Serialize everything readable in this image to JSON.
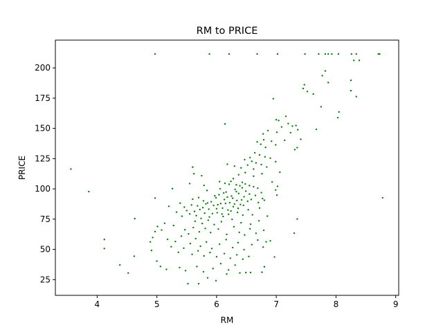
{
  "chart_data": {
    "type": "scatter",
    "title": "RM to PRICE",
    "xlabel": "RM",
    "ylabel": "PRICE",
    "xlim": [
      3.3,
      9.05
    ],
    "ylim": [
      12,
      223
    ],
    "xticks": [
      4,
      5,
      6,
      7,
      8,
      9
    ],
    "yticks": [
      25,
      50,
      75,
      100,
      125,
      150,
      175,
      200
    ],
    "grid": false,
    "marker_color": "#008000",
    "series": [
      {
        "points": [
          [
            4.97,
            211.5
          ],
          [
            5.88,
            211.5
          ],
          [
            6.21,
            211.5
          ],
          [
            6.68,
            211.5
          ],
          [
            7.02,
            211.5
          ],
          [
            7.48,
            211.5
          ],
          [
            7.82,
            211.5
          ],
          [
            7.87,
            211.5
          ],
          [
            7.93,
            211.5
          ],
          [
            8.04,
            211.5
          ],
          [
            8.26,
            211.5
          ],
          [
            8.34,
            211.5
          ],
          [
            8.71,
            211.5
          ],
          [
            8.73,
            211.5
          ],
          [
            7.71,
            211.5
          ],
          [
            8.3,
            206.2
          ],
          [
            8.39,
            206.2
          ],
          [
            7.77,
            193.6
          ],
          [
            7.82,
            197.5
          ],
          [
            7.87,
            187.9
          ],
          [
            8.25,
            189.7
          ],
          [
            7.47,
            186.1
          ],
          [
            7.45,
            183.0
          ],
          [
            7.52,
            180.5
          ],
          [
            7.62,
            178.4
          ],
          [
            8.25,
            181.2
          ],
          [
            8.34,
            176.3
          ],
          [
            6.95,
            174.6
          ],
          [
            7.75,
            167.9
          ],
          [
            8.05,
            163.6
          ],
          [
            8.03,
            158.9
          ],
          [
            6.14,
            153.7
          ],
          [
            7.0,
            157.2
          ],
          [
            7.04,
            156.5
          ],
          [
            7.16,
            160.0
          ],
          [
            7.2,
            154.0
          ],
          [
            7.27,
            151.9
          ],
          [
            7.33,
            152.4
          ],
          [
            7.36,
            148.9
          ],
          [
            7.67,
            149.2
          ],
          [
            7.09,
            151.2
          ],
          [
            6.86,
            148.2
          ],
          [
            6.78,
            145.5
          ],
          [
            7.01,
            146.8
          ],
          [
            7.24,
            146.5
          ],
          [
            6.79,
            140.6
          ],
          [
            6.68,
            138.9
          ],
          [
            6.92,
            139.4
          ],
          [
            7.14,
            140.2
          ],
          [
            7.41,
            141.0
          ],
          [
            6.99,
            136.4
          ],
          [
            6.74,
            136.9
          ],
          [
            6.82,
            134.3
          ],
          [
            7.31,
            132.5
          ],
          [
            7.35,
            134.1
          ],
          [
            6.64,
            129.8
          ],
          [
            6.72,
            128.1
          ],
          [
            6.81,
            126.5
          ],
          [
            6.9,
            125.4
          ],
          [
            6.56,
            125.9
          ],
          [
            6.47,
            124.2
          ],
          [
            6.59,
            122.8
          ],
          [
            6.66,
            121.5
          ],
          [
            6.75,
            120.1
          ],
          [
            6.99,
            122.5
          ],
          [
            6.18,
            120.4
          ],
          [
            6.3,
            118.8
          ],
          [
            6.41,
            117.4
          ],
          [
            6.52,
            119.7
          ],
          [
            6.62,
            116.4
          ],
          [
            6.84,
            118.1
          ],
          [
            5.6,
            118.0
          ],
          [
            5.62,
            112.5
          ],
          [
            5.75,
            110.9
          ],
          [
            6.37,
            111.7
          ],
          [
            6.48,
            113.5
          ],
          [
            6.62,
            110.5
          ],
          [
            6.76,
            112.5
          ],
          [
            7.06,
            113.8
          ],
          [
            6.28,
            108.5
          ],
          [
            6.93,
            105.7
          ],
          [
            5.26,
            100.2
          ],
          [
            5.55,
            104.4
          ],
          [
            5.79,
            102.9
          ],
          [
            6.05,
            106.0
          ],
          [
            6.14,
            104.6
          ],
          [
            6.24,
            106.2
          ],
          [
            6.33,
            103.4
          ],
          [
            6.43,
            105.4
          ],
          [
            6.55,
            102.7
          ],
          [
            6.69,
            100.6
          ],
          [
            7.02,
            102.1
          ],
          [
            6.99,
            99.1
          ],
          [
            3.56,
            116.4
          ],
          [
            3.86,
            97.8
          ],
          [
            4.97,
            92.4
          ],
          [
            8.78,
            92.6
          ],
          [
            7.01,
            94.8
          ],
          [
            6.77,
            92.0
          ],
          [
            5.39,
            88.2
          ],
          [
            5.46,
            84.9
          ],
          [
            5.6,
            91.5
          ],
          [
            5.68,
            86.0
          ],
          [
            5.72,
            82.9
          ],
          [
            5.78,
            90.1
          ],
          [
            5.82,
            87.6
          ],
          [
            5.87,
            83.2
          ],
          [
            5.91,
            89.4
          ],
          [
            5.95,
            86.3
          ],
          [
            5.99,
            92.7
          ],
          [
            6.01,
            80.3
          ],
          [
            6.04,
            95.2
          ],
          [
            6.07,
            87.9
          ],
          [
            6.1,
            84.1
          ],
          [
            6.13,
            91.2
          ],
          [
            6.16,
            97.4
          ],
          [
            6.19,
            82.5
          ],
          [
            6.22,
            88.6
          ],
          [
            6.25,
            94.1
          ],
          [
            6.28,
            85.3
          ],
          [
            6.31,
            99.6
          ],
          [
            6.34,
            90.4
          ],
          [
            6.37,
            96.2
          ],
          [
            6.4,
            87.1
          ],
          [
            6.43,
            100.9
          ],
          [
            6.46,
            93.5
          ],
          [
            6.49,
            98.1
          ],
          [
            6.52,
            89.8
          ],
          [
            6.55,
            95.7
          ],
          [
            6.58,
            91.3
          ],
          [
            6.62,
            101.8
          ],
          [
            6.65,
            94.6
          ],
          [
            6.7,
            88.7
          ],
          [
            6.75,
            96.9
          ],
          [
            5.84,
            98.7
          ],
          [
            5.88,
            76.8
          ],
          [
            5.93,
            79.6
          ],
          [
            5.97,
            94.3
          ],
          [
            6.02,
            86.9
          ],
          [
            6.06,
            100.1
          ],
          [
            6.09,
            79.2
          ],
          [
            6.12,
            96.6
          ],
          [
            6.15,
            88.0
          ],
          [
            6.18,
            93.2
          ],
          [
            6.21,
            103.8
          ],
          [
            6.24,
            81.7
          ],
          [
            6.27,
            92.3
          ],
          [
            6.3,
            87.5
          ],
          [
            6.33,
            97.8
          ],
          [
            6.36,
            83.9
          ],
          [
            6.39,
            102.6
          ],
          [
            6.42,
            90.9
          ],
          [
            6.45,
            86.4
          ],
          [
            6.48,
            104.1
          ],
          [
            5.5,
            82.1
          ],
          [
            5.55,
            79.3
          ],
          [
            5.58,
            86.7
          ],
          [
            5.63,
            81.4
          ],
          [
            5.66,
            77.9
          ],
          [
            5.7,
            92.8
          ],
          [
            5.74,
            75.6
          ],
          [
            5.77,
            84.5
          ],
          [
            5.8,
            79.9
          ],
          [
            5.85,
            88.4
          ],
          [
            6.0,
            83.6
          ],
          [
            6.11,
            77.2
          ],
          [
            6.2,
            79.0
          ],
          [
            6.35,
            80.6
          ],
          [
            6.44,
            78.3
          ],
          [
            6.53,
            82.7
          ],
          [
            6.6,
            78.6
          ],
          [
            6.72,
            84.2
          ],
          [
            6.8,
            90.6
          ],
          [
            6.85,
            77.5
          ],
          [
            5.2,
            85.6
          ],
          [
            5.33,
            80.8
          ],
          [
            5.42,
            77.4
          ],
          [
            5.64,
            73.2
          ],
          [
            5.76,
            71.4
          ],
          [
            5.86,
            74.1
          ],
          [
            5.96,
            70.5
          ],
          [
            6.08,
            72.9
          ],
          [
            6.26,
            74.8
          ],
          [
            6.41,
            72.0
          ],
          [
            6.57,
            70.8
          ],
          [
            6.71,
            73.6
          ],
          [
            7.35,
            75.1
          ],
          [
            7.3,
            63.4
          ],
          [
            4.63,
            75.4
          ],
          [
            5.01,
            68.9
          ],
          [
            5.13,
            71.6
          ],
          [
            5.28,
            69.7
          ],
          [
            5.47,
            66.2
          ],
          [
            5.53,
            62.8
          ],
          [
            5.61,
            68.1
          ],
          [
            5.71,
            64.5
          ],
          [
            5.81,
            67.3
          ],
          [
            5.9,
            63.9
          ],
          [
            6.03,
            66.8
          ],
          [
            6.17,
            62.4
          ],
          [
            6.29,
            68.7
          ],
          [
            6.38,
            64.1
          ],
          [
            6.47,
            61.9
          ],
          [
            6.56,
            67.0
          ],
          [
            6.66,
            63.3
          ],
          [
            6.79,
            65.8
          ],
          [
            4.97,
            64.7
          ],
          [
            5.08,
            66.0
          ],
          [
            4.93,
            59.8
          ],
          [
            5.18,
            58.3
          ],
          [
            5.31,
            56.5
          ],
          [
            5.41,
            60.9
          ],
          [
            5.56,
            54.8
          ],
          [
            5.65,
            58.9
          ],
          [
            5.73,
            52.6
          ],
          [
            5.83,
            56.1
          ],
          [
            5.92,
            50.7
          ],
          [
            6.05,
            54.3
          ],
          [
            6.16,
            58.1
          ],
          [
            6.27,
            51.5
          ],
          [
            6.36,
            55.6
          ],
          [
            6.46,
            49.8
          ],
          [
            6.59,
            53.9
          ],
          [
            6.69,
            57.7
          ],
          [
            6.83,
            56.2
          ],
          [
            6.9,
            57.0
          ],
          [
            6.78,
            51.9
          ],
          [
            4.12,
            58.2
          ],
          [
            4.12,
            50.7
          ],
          [
            4.89,
            56.2
          ],
          [
            4.91,
            49.1
          ],
          [
            5.24,
            52.2
          ],
          [
            5.36,
            47.6
          ],
          [
            5.45,
            51.0
          ],
          [
            5.59,
            45.9
          ],
          [
            5.69,
            48.8
          ],
          [
            5.79,
            44.6
          ],
          [
            5.89,
            47.4
          ],
          [
            6.0,
            43.9
          ],
          [
            6.13,
            46.5
          ],
          [
            6.23,
            42.7
          ],
          [
            6.34,
            45.5
          ],
          [
            6.44,
            41.9
          ],
          [
            6.54,
            44.1
          ],
          [
            6.97,
            43.7
          ],
          [
            4.62,
            44.3
          ],
          [
            4.38,
            37.1
          ],
          [
            4.52,
            30.5
          ],
          [
            5.0,
            40.3
          ],
          [
            5.06,
            35.9
          ],
          [
            5.16,
            33.5
          ],
          [
            5.38,
            35.0
          ],
          [
            5.48,
            32.4
          ],
          [
            5.67,
            35.8
          ],
          [
            5.78,
            31.5
          ],
          [
            5.94,
            34.1
          ],
          [
            6.07,
            38.2
          ],
          [
            6.2,
            33.0
          ],
          [
            6.31,
            37.0
          ],
          [
            6.49,
            30.8
          ],
          [
            6.57,
            30.9
          ],
          [
            6.76,
            31.1
          ],
          [
            6.8,
            35.6
          ],
          [
            5.52,
            21.6
          ],
          [
            5.7,
            21.6
          ],
          [
            5.85,
            26.5
          ],
          [
            5.99,
            24.1
          ],
          [
            6.17,
            29.6
          ],
          [
            6.39,
            30.5
          ]
        ]
      }
    ]
  }
}
